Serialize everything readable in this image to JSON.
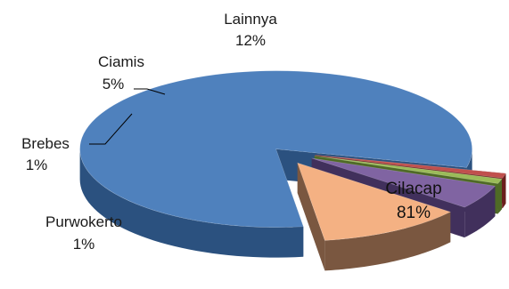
{
  "chart_data": {
    "type": "pie",
    "style": "3d-exploded",
    "categories": [
      "Cilacap",
      "Lainnya",
      "Ciamis",
      "Purwokerto",
      "Brebes"
    ],
    "values": [
      81,
      12,
      5,
      1,
      1
    ],
    "value_labels": [
      "81%",
      "12%",
      "5%",
      "1%",
      "1%"
    ],
    "colors": [
      "#4f81bd",
      "#f4b183",
      "#8064a2",
      "#9bbb59",
      "#c0504d"
    ],
    "side_colors": [
      "#2b517f",
      "#7a5740",
      "#41305c",
      "#4f6a26",
      "#6b1f1d"
    ],
    "legend": "none"
  }
}
